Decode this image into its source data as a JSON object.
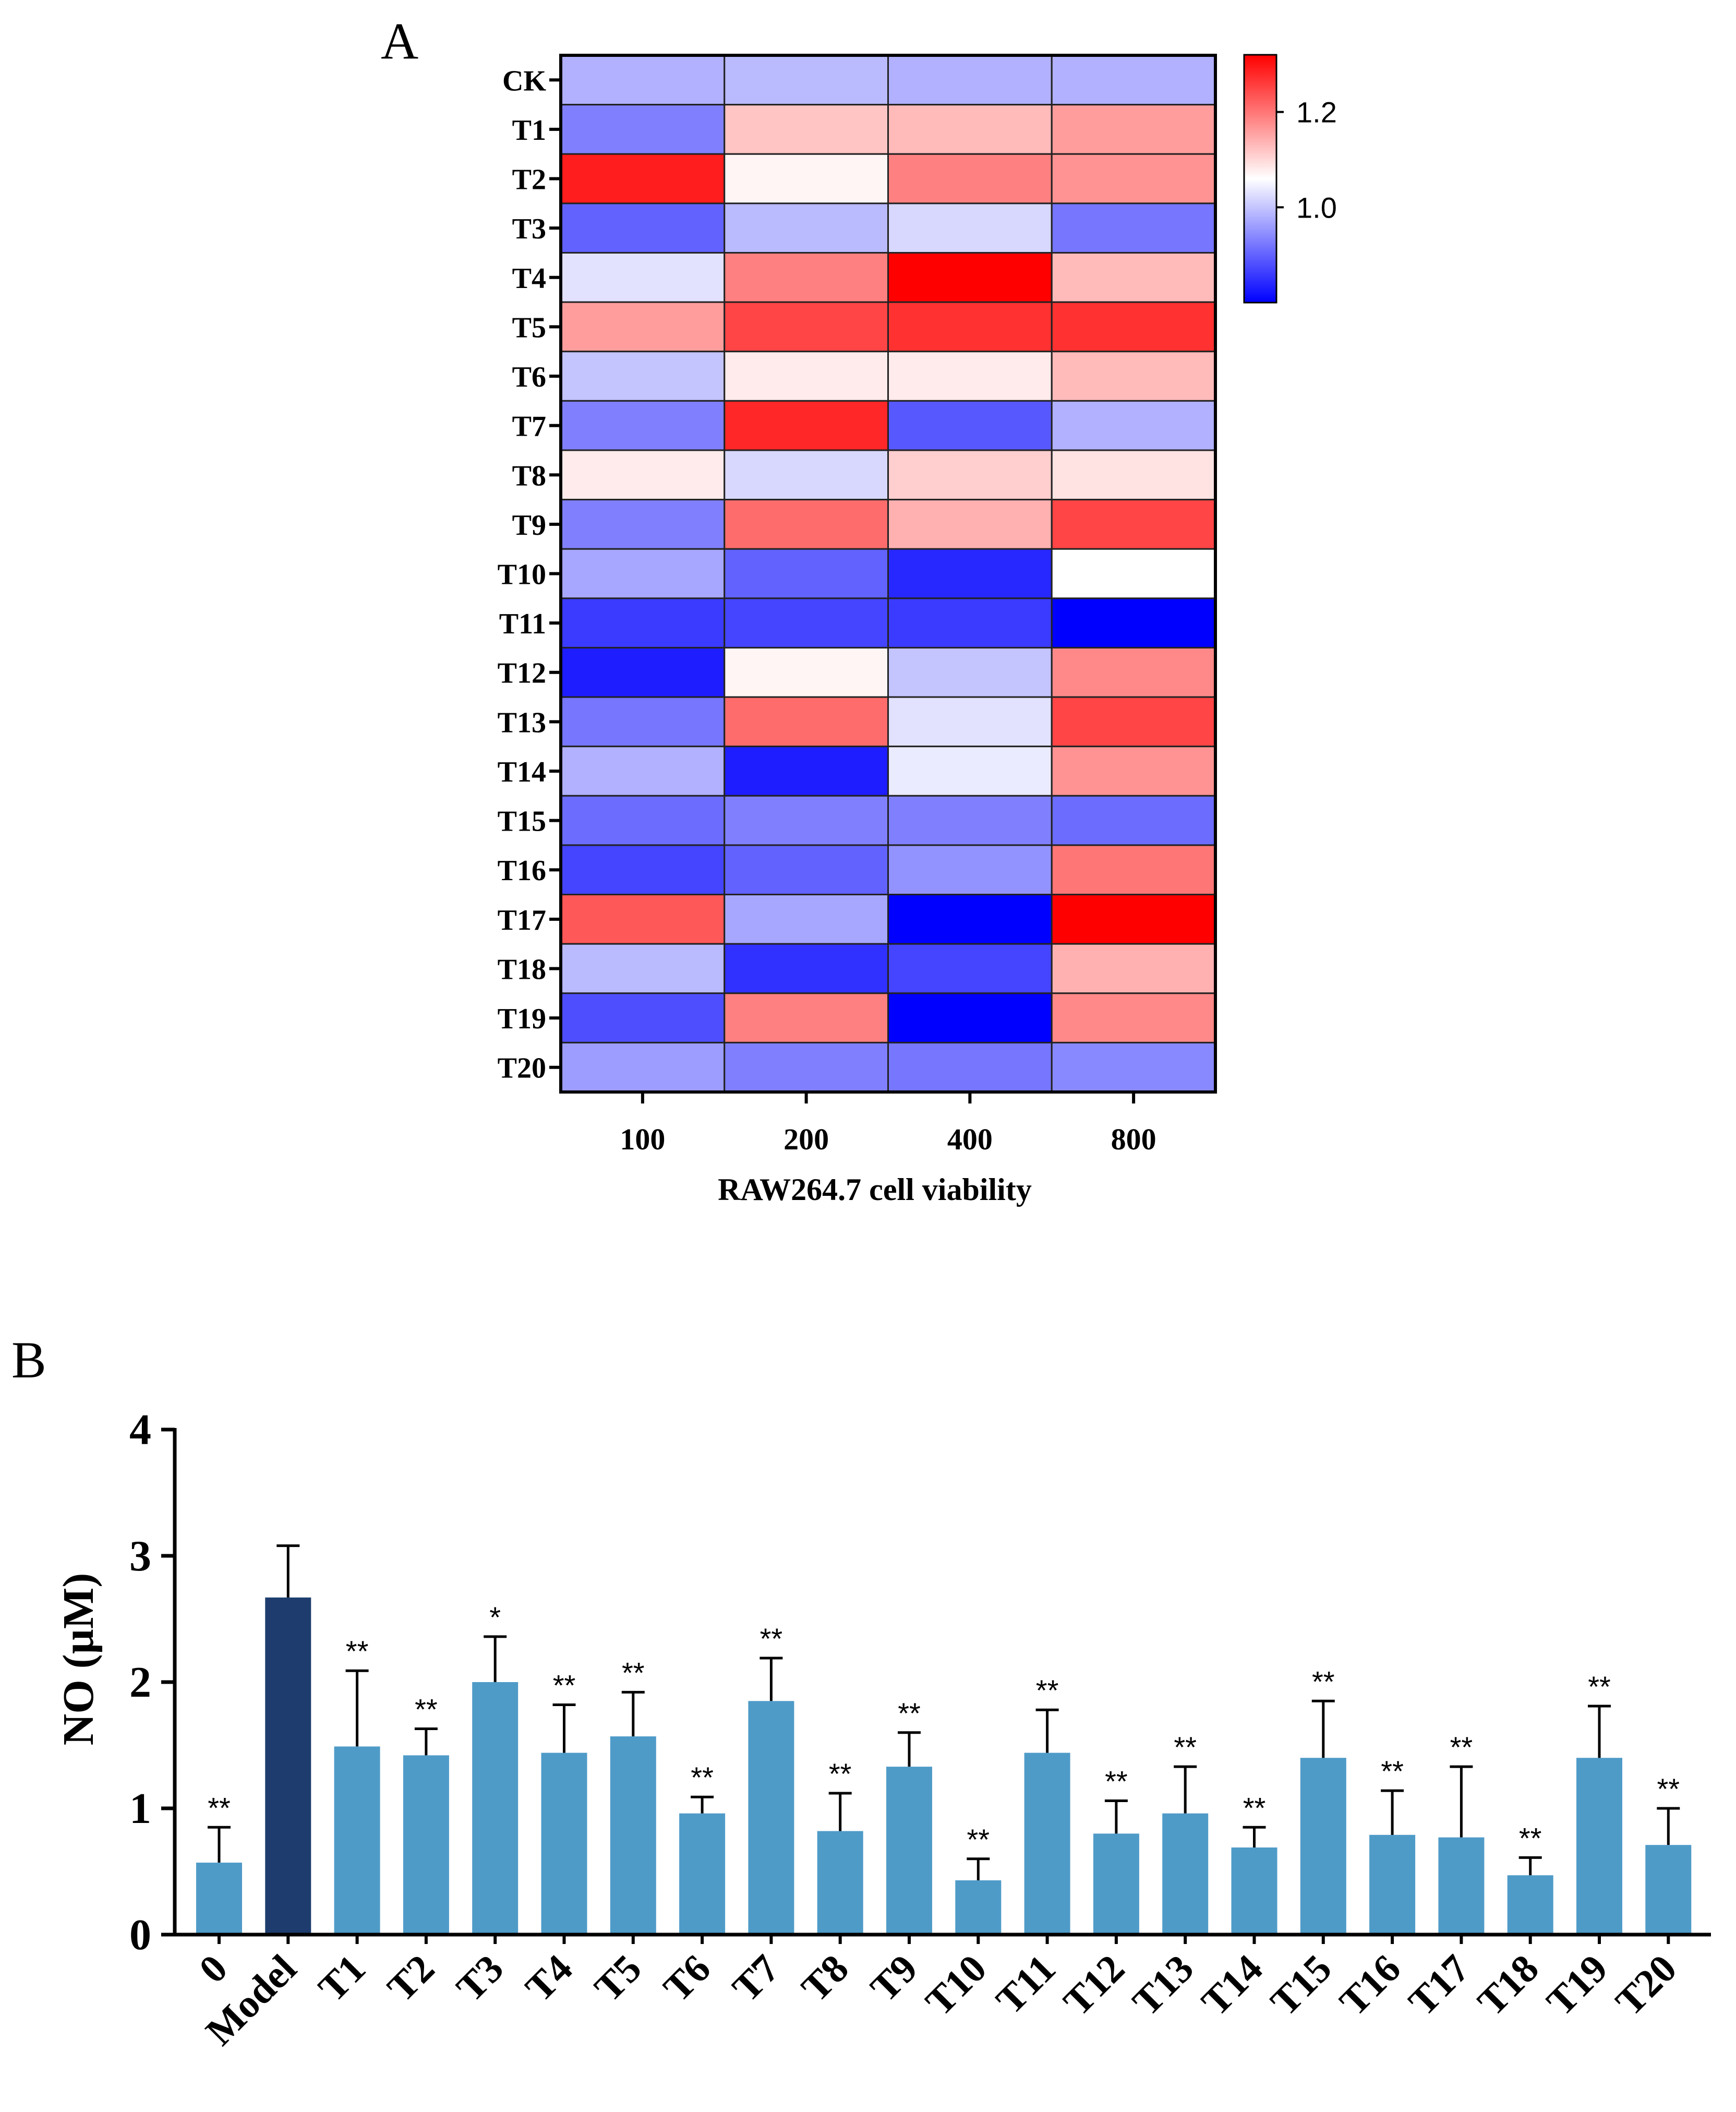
{
  "panels": {
    "a_label": "A",
    "b_label": "B"
  },
  "chart_data": [
    {
      "type": "heatmap",
      "panel": "A",
      "xlabel": "RAW264.7 cell viability",
      "x_categories": [
        "100",
        "200",
        "400",
        "800"
      ],
      "y_categories": [
        "CK",
        "T1",
        "T2",
        "T3",
        "T4",
        "T5",
        "T6",
        "T7",
        "T8",
        "T9",
        "T10",
        "T11",
        "T12",
        "T13",
        "T14",
        "T15",
        "T16",
        "T17",
        "T18",
        "T19",
        "T20"
      ],
      "values": [
        [
          0.98,
          0.99,
          0.98,
          0.98
        ],
        [
          0.93,
          1.12,
          1.13,
          1.16
        ],
        [
          1.29,
          1.07,
          1.19,
          1.17
        ],
        [
          0.9,
          0.99,
          1.02,
          0.92
        ],
        [
          1.03,
          1.19,
          1.32,
          1.13
        ],
        [
          1.16,
          1.25,
          1.27,
          1.27
        ],
        [
          1.0,
          1.08,
          1.08,
          1.13
        ],
        [
          0.93,
          1.28,
          0.89,
          0.98
        ],
        [
          1.08,
          1.02,
          1.11,
          1.09
        ],
        [
          0.93,
          1.21,
          1.14,
          1.25
        ],
        [
          0.97,
          0.9,
          0.84,
          1.06
        ],
        [
          0.86,
          0.87,
          0.86,
          0.79
        ],
        [
          0.83,
          1.07,
          1.0,
          1.18
        ],
        [
          0.92,
          1.21,
          1.03,
          1.25
        ],
        [
          0.98,
          0.83,
          1.04,
          1.17
        ],
        [
          0.91,
          0.93,
          0.93,
          0.91
        ],
        [
          0.87,
          0.9,
          0.95,
          1.2
        ],
        [
          1.23,
          0.97,
          0.79,
          1.32
        ],
        [
          0.99,
          0.85,
          0.87,
          1.14
        ],
        [
          0.88,
          1.19,
          0.79,
          1.18
        ],
        [
          0.96,
          0.93,
          0.92,
          0.94
        ]
      ],
      "colorbar": {
        "range": [
          0.8,
          1.32
        ],
        "ticks": [
          1.0,
          1.2
        ],
        "tick_labels": [
          "1.0",
          "1.2"
        ],
        "colors": {
          "low": "#0000ff",
          "mid": "#ffffff",
          "high": "#ff0000"
        },
        "mid_value": 1.06
      }
    },
    {
      "type": "bar",
      "panel": "B",
      "ylabel": "NO (µM)",
      "ylim": [
        0,
        4
      ],
      "yticks": [
        0,
        1,
        2,
        3,
        4
      ],
      "ytick_labels": [
        "0",
        "1",
        "2",
        "3",
        "4"
      ],
      "categories": [
        "0",
        "Model",
        "T1",
        "T2",
        "T3",
        "T4",
        "T5",
        "T6",
        "T7",
        "T8",
        "T9",
        "T10",
        "T11",
        "T12",
        "T13",
        "T14",
        "T15",
        "T16",
        "T17",
        "T18",
        "T19",
        "T20"
      ],
      "values": [
        0.57,
        2.67,
        1.49,
        1.42,
        2.0,
        1.44,
        1.57,
        0.96,
        1.85,
        0.82,
        1.33,
        0.43,
        1.44,
        0.8,
        0.96,
        0.69,
        1.4,
        0.79,
        0.77,
        0.47,
        1.4,
        0.71
      ],
      "errors": [
        0.28,
        0.41,
        0.6,
        0.21,
        0.36,
        0.38,
        0.35,
        0.13,
        0.34,
        0.3,
        0.27,
        0.17,
        0.34,
        0.26,
        0.37,
        0.16,
        0.45,
        0.35,
        0.56,
        0.14,
        0.41,
        0.29
      ],
      "significance": [
        "**",
        "",
        "**",
        "**",
        "*",
        "**",
        "**",
        "**",
        "**",
        "**",
        "**",
        "**",
        "**",
        "**",
        "**",
        "**",
        "**",
        "**",
        "**",
        "**",
        "**",
        "**"
      ],
      "colors": {
        "bar": "#4f9bc8",
        "model": "#1e3d6e"
      }
    }
  ]
}
